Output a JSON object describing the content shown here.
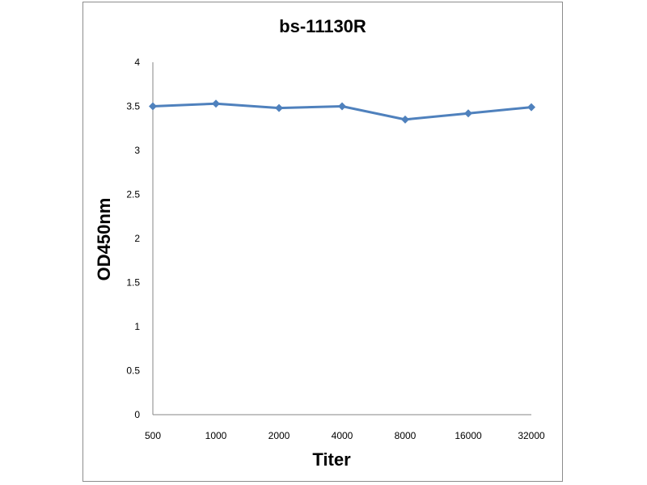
{
  "chart_data": {
    "type": "line",
    "title": "bs-11130R",
    "xlabel": "Titer",
    "ylabel": "OD450nm",
    "categories": [
      "500",
      "1000",
      "2000",
      "4000",
      "8000",
      "16000",
      "32000"
    ],
    "series": [
      {
        "values": [
          3.5,
          3.53,
          3.48,
          3.5,
          3.35,
          3.42,
          3.49
        ]
      }
    ],
    "ylim": [
      0,
      4
    ],
    "yticks": [
      "0",
      "0.5",
      "1",
      "1.5",
      "2",
      "2.5",
      "3",
      "3.5",
      "4"
    ],
    "grid": false,
    "legend": "none",
    "line_color": "#4F81BD",
    "axis_color": "#868686"
  }
}
